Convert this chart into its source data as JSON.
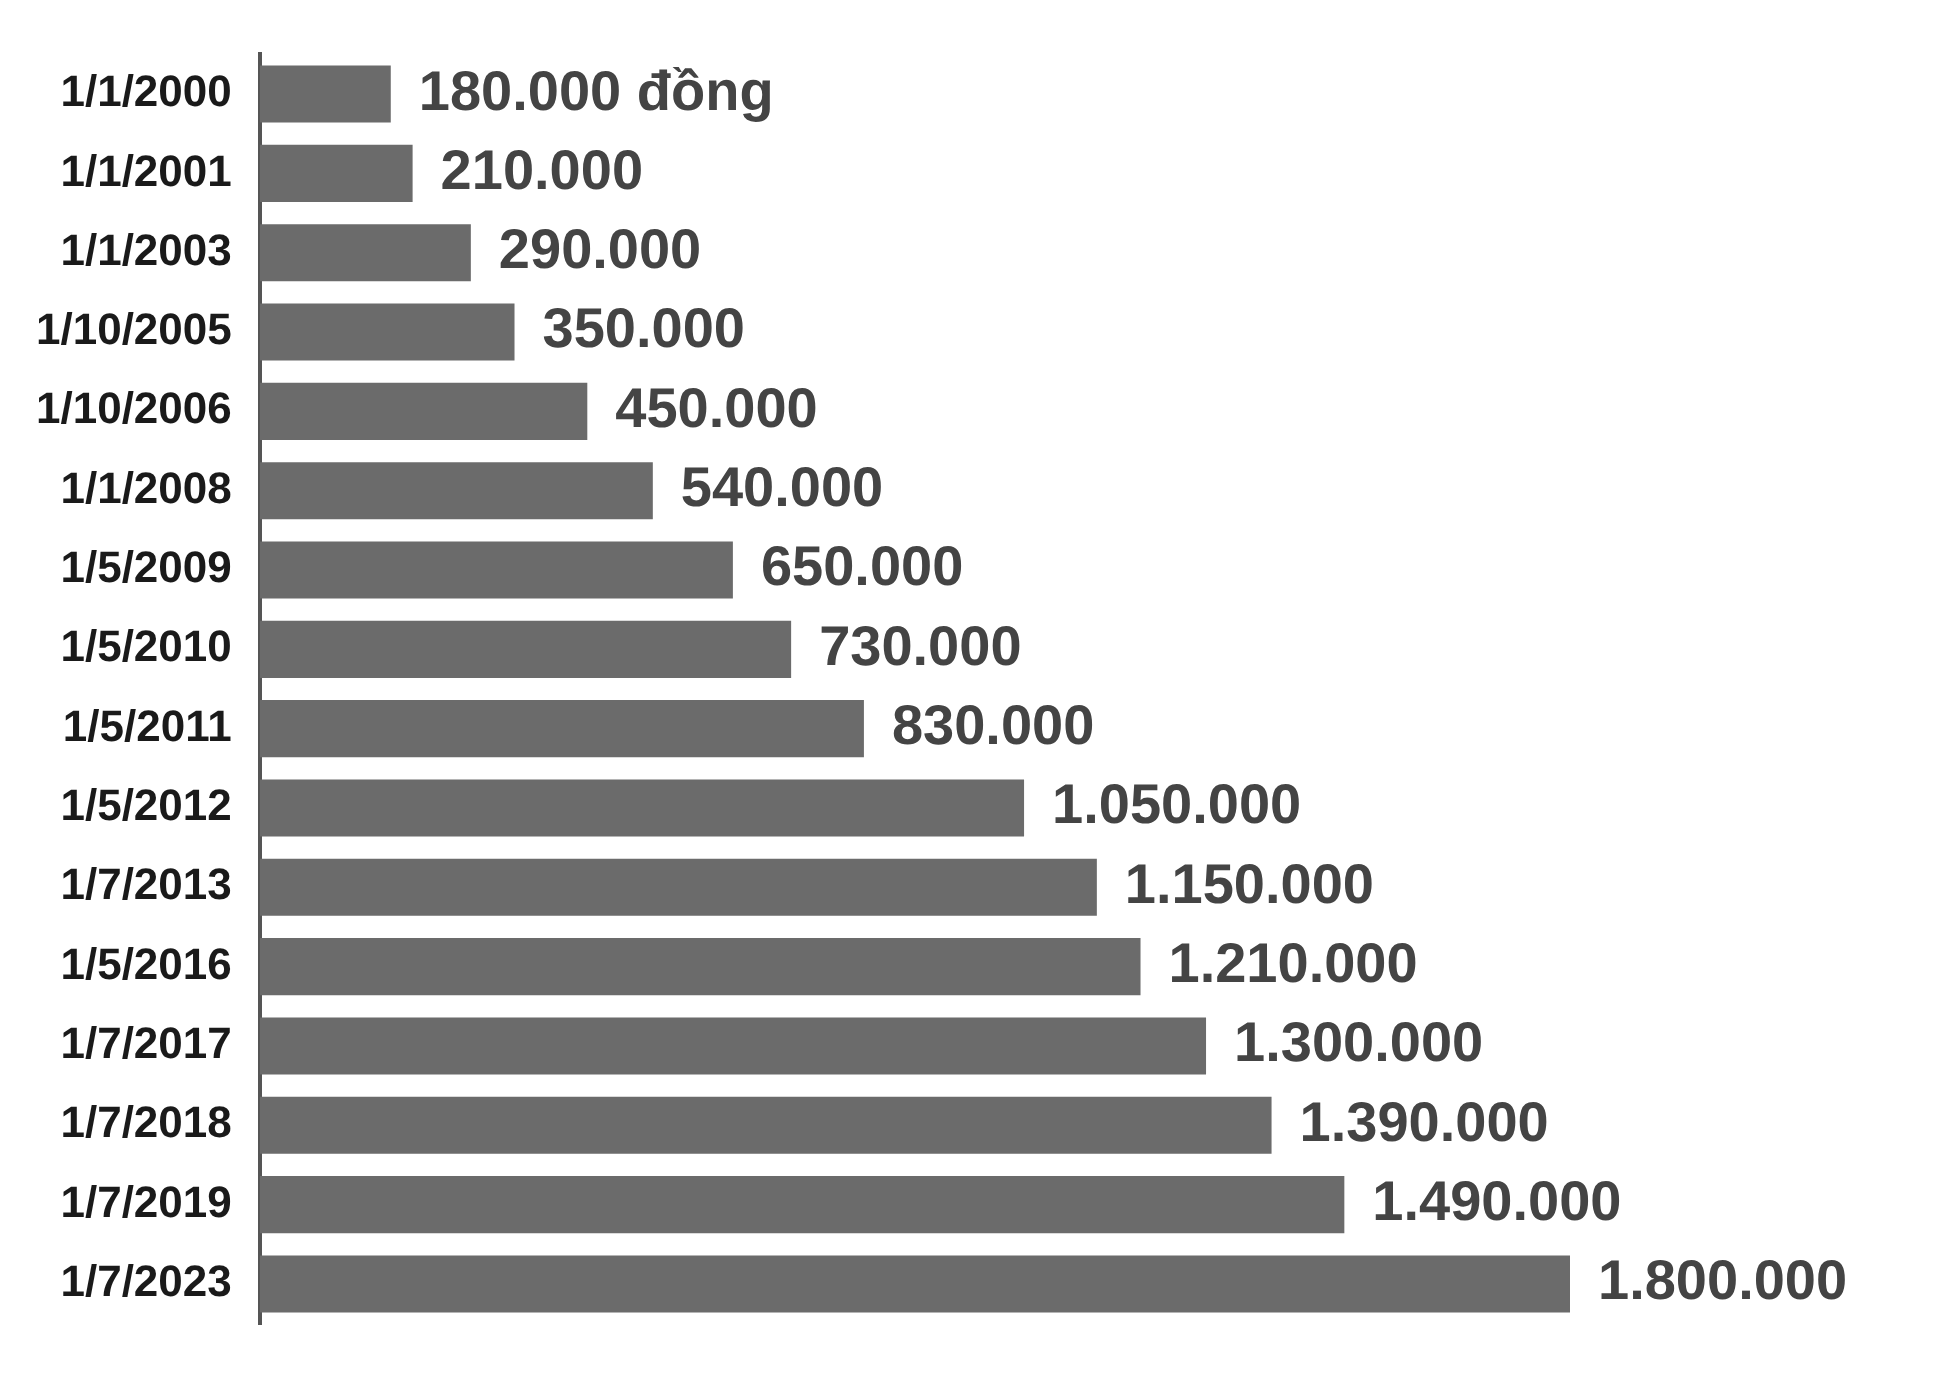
{
  "chart_data": {
    "type": "bar",
    "orientation": "horizontal",
    "categories": [
      "1/1/2000",
      "1/1/2001",
      "1/1/2003",
      "1/10/2005",
      "1/10/2006",
      "1/1/2008",
      "1/5/2009",
      "1/5/2010",
      "1/5/2011",
      "1/5/2012",
      "1/7/2013",
      "1/5/2016",
      "1/7/2017",
      "1/7/2018",
      "1/7/2019",
      "1/7/2023"
    ],
    "values": [
      180000,
      210000,
      290000,
      350000,
      450000,
      540000,
      650000,
      730000,
      830000,
      1050000,
      1150000,
      1210000,
      1300000,
      1390000,
      1490000,
      1800000
    ],
    "color": "#6b6b6b",
    "value_labels": [
      "180.000 đồng",
      "210.000",
      "290.000",
      "350.000",
      "450.000",
      "540.000",
      "650.000",
      "730.000",
      "830.000",
      "1.050.000",
      "1.150.000",
      "1.210.000",
      "1.300.000",
      "1.390.000",
      "1.490.000",
      "1.800.000"
    ],
    "legend": false
  }
}
